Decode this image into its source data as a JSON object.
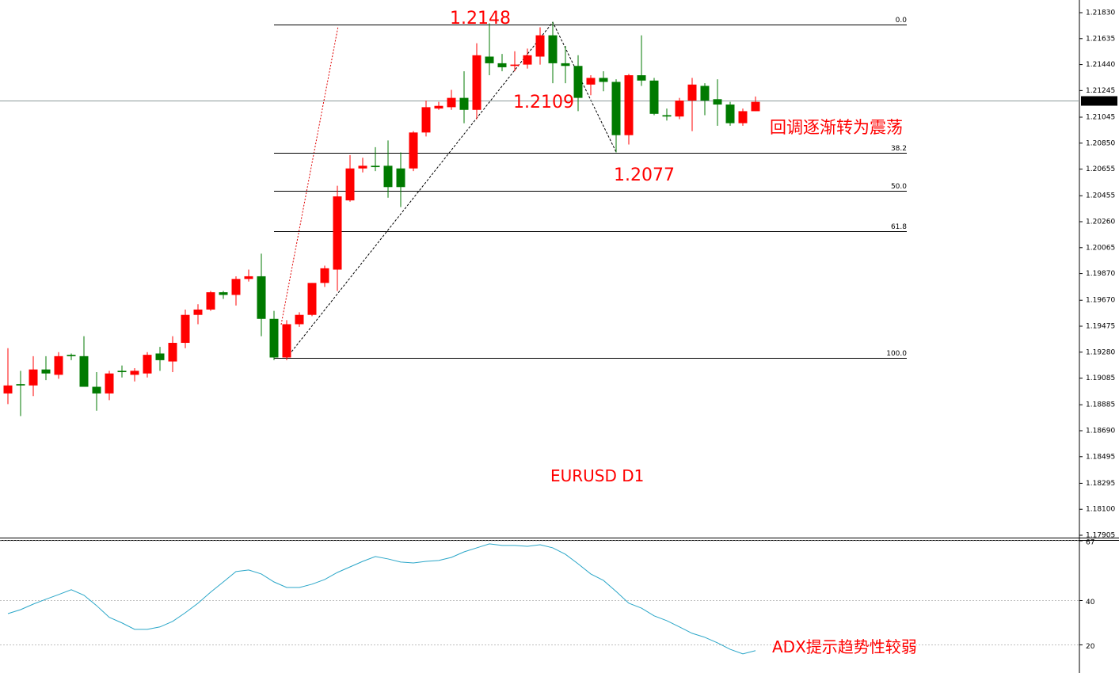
{
  "chart_data": [
    {
      "type": "candlestick",
      "title": "EURUSD D1",
      "categories": [
        null,
        null,
        null,
        null,
        null,
        null,
        null,
        null,
        null,
        null,
        null,
        null,
        null,
        null,
        null,
        null,
        null,
        null,
        null,
        null,
        null,
        null,
        null,
        null,
        null,
        null,
        null,
        null,
        null,
        null,
        null,
        null,
        null,
        null,
        null,
        null,
        null,
        null,
        null,
        null,
        null,
        null,
        null,
        null,
        null,
        null,
        null,
        null,
        null,
        null,
        null,
        null,
        null,
        null,
        null,
        null,
        null,
        null,
        null,
        null
      ],
      "open": [
        1.1897,
        1.1904,
        1.1903,
        1.1915,
        1.1911,
        1.1926,
        1.1925,
        1.1902,
        1.1897,
        1.1914,
        1.1911,
        1.1912,
        1.1927,
        1.1921,
        1.1935,
        1.1956,
        1.196,
        1.1973,
        1.1971,
        1.1983,
        1.1985,
        1.1953,
        1.1924,
        1.1949,
        1.1956,
        1.198,
        1.199,
        1.2042,
        1.2066,
        1.2068,
        1.2068,
        1.2066,
        1.2066,
        1.2093,
        1.2111,
        1.2112,
        1.2119,
        1.211,
        1.215,
        1.2145,
        1.2143,
        1.2144,
        1.215,
        1.2166,
        1.2145,
        1.2143,
        1.2129,
        1.2134,
        1.2131,
        1.2091,
        1.2136,
        1.2132,
        1.2106,
        1.2105,
        1.2117,
        1.2128,
        1.2118,
        1.2114,
        1.21,
        1.2109
      ],
      "high": [
        1.1931,
        1.1914,
        1.1925,
        1.1925,
        1.1928,
        1.1927,
        1.194,
        1.1913,
        1.1914,
        1.1918,
        1.1916,
        1.1928,
        1.1932,
        1.194,
        1.196,
        1.1964,
        1.1974,
        1.1974,
        1.1985,
        1.199,
        1.2002,
        1.1959,
        1.1952,
        1.1958,
        1.198,
        1.1993,
        1.2053,
        1.2076,
        1.2074,
        1.2082,
        1.2087,
        1.2078,
        1.2094,
        1.2117,
        1.2116,
        1.2125,
        1.2139,
        1.216,
        1.2175,
        1.2152,
        1.2154,
        1.2156,
        1.2172,
        1.2176,
        1.2158,
        1.2151,
        1.2136,
        1.2139,
        1.2133,
        1.2137,
        1.2166,
        1.2134,
        1.2111,
        1.2119,
        1.2134,
        1.213,
        1.2133,
        1.2116,
        1.2111,
        1.212
      ],
      "low": [
        1.1889,
        1.188,
        1.1895,
        1.1907,
        1.1908,
        1.1922,
        1.1902,
        1.1884,
        1.1892,
        1.1909,
        1.1906,
        1.1909,
        1.1914,
        1.1913,
        1.1931,
        1.1949,
        1.1959,
        1.1968,
        1.1963,
        1.1981,
        1.194,
        1.1922,
        1.1922,
        1.1947,
        1.1955,
        1.1977,
        1.1974,
        1.2041,
        1.2063,
        1.2064,
        1.2044,
        1.2037,
        1.2064,
        1.209,
        1.211,
        1.211,
        1.21,
        1.2103,
        1.2136,
        1.2139,
        1.2139,
        1.2141,
        1.2144,
        1.213,
        1.213,
        1.2109,
        1.2121,
        1.2124,
        1.2078,
        1.2084,
        1.2128,
        1.2106,
        1.2102,
        1.2103,
        1.2094,
        1.2106,
        1.2098,
        1.2098,
        1.2098,
        1.2109
      ],
      "close": [
        1.1903,
        1.1903,
        1.1915,
        1.1912,
        1.1925,
        1.1925,
        1.1902,
        1.1897,
        1.1912,
        1.1913,
        1.1914,
        1.1926,
        1.1922,
        1.1935,
        1.1956,
        1.196,
        1.1973,
        1.1971,
        1.1983,
        1.1985,
        1.1953,
        1.1924,
        1.1949,
        1.1956,
        1.198,
        1.1991,
        1.2045,
        1.2066,
        1.2068,
        1.2067,
        1.2052,
        1.2052,
        1.2093,
        1.2112,
        1.2113,
        1.2119,
        1.211,
        1.2151,
        1.2145,
        1.2142,
        1.2144,
        1.2151,
        1.2166,
        1.2145,
        1.2143,
        1.2119,
        1.2134,
        1.2131,
        1.2091,
        1.2136,
        1.2132,
        1.2107,
        1.2105,
        1.2117,
        1.2129,
        1.2117,
        1.2114,
        1.21,
        1.2109,
        1.2116
      ],
      "up_color": "#ff0000",
      "down_color": "#007a00",
      "ylim": [
        1.17905,
        1.2183
      ],
      "yticks": [
        {
          "value": 1.2183,
          "label": "1.21830"
        },
        1.21635,
        {
          "value": 1.2144,
          "label": "1.21440"
        },
        1.21245,
        1.21045,
        {
          "value": 1.2085,
          "label": "1.20850"
        },
        1.20655,
        1.20455,
        {
          "value": 1.2026,
          "label": "1.20260"
        },
        1.20065,
        {
          "value": 1.1987,
          "label": "1.19870"
        },
        {
          "value": 1.1967,
          "label": "1.19670"
        },
        1.19475,
        {
          "value": 1.1928,
          "label": "1.19280"
        },
        1.19085,
        1.18885,
        {
          "value": 1.1869,
          "label": "1.18690"
        },
        1.18495,
        1.18295,
        {
          "value": 1.181,
          "label": "1.18100"
        },
        1.17905
      ],
      "last_price": {
        "value": 1.2117,
        "label": "1.21170"
      },
      "fib_levels": [
        {
          "value": 1.2174,
          "label": "0.0"
        },
        {
          "value": 1.2078,
          "label": "38.2"
        },
        {
          "value": 1.2049,
          "label": "50.0"
        },
        {
          "value": 1.2019,
          "label": "61.8"
        },
        {
          "value": 1.1924,
          "label": "100.0"
        }
      ],
      "annotations": [
        "1.2148",
        "1.2109",
        "1.2077",
        "回调逐渐转为震荡"
      ]
    },
    {
      "type": "line",
      "categories": [
        null,
        null,
        null,
        null,
        null,
        null,
        null,
        null,
        null,
        null,
        null,
        null,
        null,
        null,
        null,
        null,
        null,
        null,
        null,
        null,
        null,
        null,
        null,
        null,
        null,
        null,
        null,
        null,
        null,
        null,
        null,
        null,
        null,
        null,
        null,
        null,
        null,
        null,
        null,
        null,
        null,
        null,
        null,
        null,
        null,
        null,
        null,
        null,
        null,
        null,
        null,
        null,
        null,
        null,
        null,
        null,
        null,
        null,
        null,
        null
      ],
      "values": [
        34.1,
        35.9,
        38.4,
        40.6,
        42.7,
        44.9,
        42.4,
        37.7,
        32.4,
        29.9,
        27.0,
        27.0,
        28.1,
        30.6,
        34.5,
        38.8,
        43.8,
        48.4,
        53.1,
        53.8,
        52.0,
        48.4,
        45.9,
        45.9,
        47.4,
        49.5,
        52.7,
        55.2,
        57.7,
        59.9,
        58.8,
        57.4,
        57.0,
        57.7,
        58.1,
        59.5,
        62.0,
        63.8,
        65.6,
        64.9,
        64.9,
        64.5,
        65.2,
        63.8,
        60.9,
        56.6,
        52.0,
        49.1,
        44.1,
        38.8,
        36.6,
        33.1,
        30.9,
        28.1,
        25.2,
        23.4,
        20.9,
        18.0,
        15.9,
        17.4
      ],
      "color": "#2aa6c8",
      "ylim": [
        8,
        67
      ],
      "yticks": [
        67,
        40,
        20
      ],
      "grid": true,
      "annotations": [
        "ADX提示趋势性较弱"
      ]
    }
  ]
}
